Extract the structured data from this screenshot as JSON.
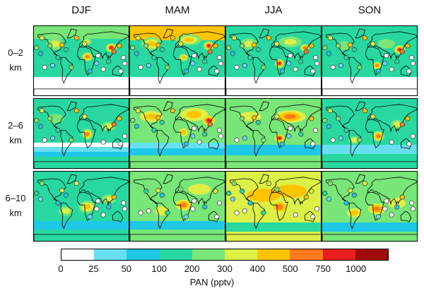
{
  "seasons": [
    "DJF",
    "MAM",
    "JJA",
    "SON"
  ],
  "altitude_rows": [
    {
      "line1": "0–2",
      "line2": "km"
    },
    {
      "line1": "2–6",
      "line2": "km"
    },
    {
      "line1": "6–10",
      "line2": "km"
    }
  ],
  "colorbar": {
    "title": "PAN (pptv)",
    "ticks": [
      "0",
      "25",
      "50",
      "100",
      "200",
      "300",
      "400",
      "500",
      "750",
      "1000"
    ],
    "bins": [
      {
        "range": "0-25",
        "color": "#ffffff"
      },
      {
        "range": "25-50",
        "color": "#66e0f0"
      },
      {
        "range": "50-100",
        "color": "#1ec8e6"
      },
      {
        "range": "100-200",
        "color": "#28d8a0"
      },
      {
        "range": "200-300",
        "color": "#78e678"
      },
      {
        "range": "300-400",
        "color": "#dcf048"
      },
      {
        "range": "400-500",
        "color": "#ffc400"
      },
      {
        "range": "500-750",
        "color": "#ff7a1e"
      },
      {
        "range": "750-1000",
        "color": "#e61e1e"
      },
      {
        "range": ">1000",
        "color": "#a00a0a"
      }
    ]
  }
}
